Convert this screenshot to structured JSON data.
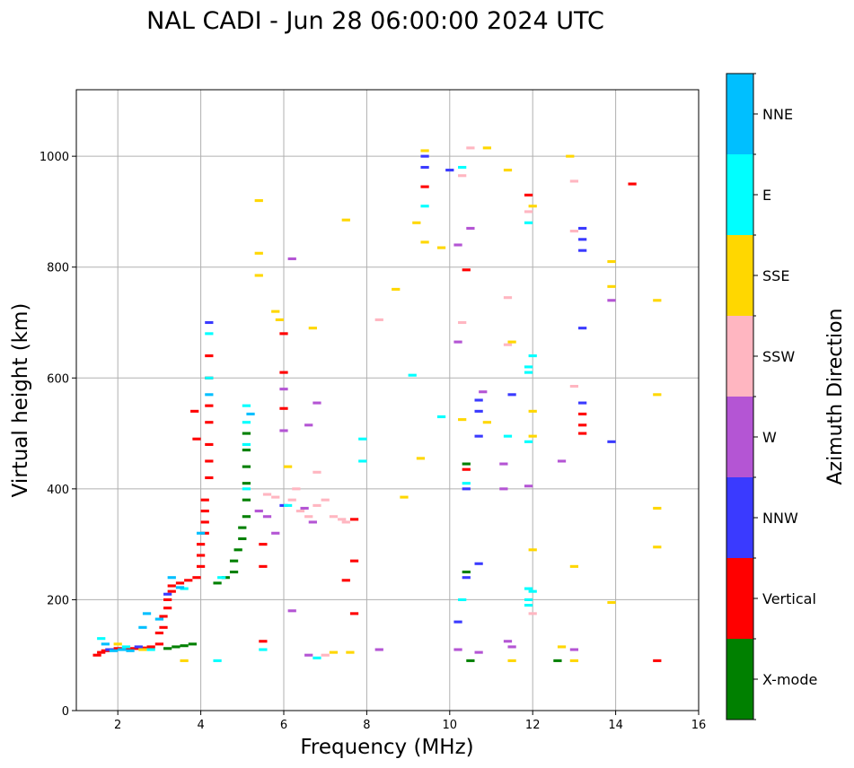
{
  "chart_data": {
    "type": "scatter",
    "title": "NAL CADI - Jun 28 06:00:00 2024 UTC",
    "xlabel": "Frequency (MHz)",
    "ylabel": "Virtual height (km)",
    "xlim": [
      1,
      16
    ],
    "ylim": [
      0,
      1120
    ],
    "xticks": [
      2,
      4,
      6,
      8,
      10,
      12,
      14,
      16
    ],
    "yticks": [
      0,
      200,
      400,
      600,
      800,
      1000
    ],
    "grid": true,
    "colorbar": {
      "title": "Azimuth Direction",
      "categories": [
        {
          "name": "X-mode",
          "color": "#008000"
        },
        {
          "name": "Vertical",
          "color": "#ff0000"
        },
        {
          "name": "NNW",
          "color": "#3a3aff"
        },
        {
          "name": "W",
          "color": "#b455d4"
        },
        {
          "name": "SSW",
          "color": "#ffb6c1"
        },
        {
          "name": "SSE",
          "color": "#ffd700"
        },
        {
          "name": "E",
          "color": "#00ffff"
        },
        {
          "name": "NNE",
          "color": "#00bfff"
        }
      ]
    },
    "series": [
      {
        "name": "Vertical",
        "points": [
          [
            1.5,
            100
          ],
          [
            1.6,
            105
          ],
          [
            1.7,
            108
          ],
          [
            1.8,
            110
          ],
          [
            2.0,
            112
          ],
          [
            2.2,
            112
          ],
          [
            2.4,
            112
          ],
          [
            2.6,
            113
          ],
          [
            2.8,
            115
          ],
          [
            3.0,
            120
          ],
          [
            3.0,
            140
          ],
          [
            3.1,
            150
          ],
          [
            3.1,
            170
          ],
          [
            3.2,
            185
          ],
          [
            3.2,
            200
          ],
          [
            3.3,
            215
          ],
          [
            3.3,
            225
          ],
          [
            3.5,
            230
          ],
          [
            3.7,
            235
          ],
          [
            3.9,
            240
          ],
          [
            4.0,
            260
          ],
          [
            4.0,
            280
          ],
          [
            4.0,
            300
          ],
          [
            4.1,
            320
          ],
          [
            4.1,
            340
          ],
          [
            4.1,
            360
          ],
          [
            4.1,
            380
          ],
          [
            4.2,
            420
          ],
          [
            4.2,
            450
          ],
          [
            4.2,
            480
          ],
          [
            4.2,
            520
          ],
          [
            4.2,
            550
          ],
          [
            4.2,
            600
          ],
          [
            4.2,
            640
          ],
          [
            3.9,
            490
          ],
          [
            3.85,
            540
          ],
          [
            5.5,
            300
          ],
          [
            5.5,
            260
          ],
          [
            5.5,
            125
          ],
          [
            6.0,
            610
          ],
          [
            6.0,
            545
          ],
          [
            6.0,
            680
          ],
          [
            7.7,
            345
          ],
          [
            7.7,
            270
          ],
          [
            7.5,
            235
          ],
          [
            7.7,
            175
          ],
          [
            9.4,
            945
          ],
          [
            10.4,
            795
          ],
          [
            10.4,
            435
          ],
          [
            11.9,
            930
          ],
          [
            13.2,
            535
          ],
          [
            13.2,
            515
          ],
          [
            13.2,
            500
          ],
          [
            14.4,
            950
          ],
          [
            15.0,
            90
          ]
        ]
      },
      {
        "name": "X-mode",
        "points": [
          [
            3.2,
            112
          ],
          [
            3.4,
            115
          ],
          [
            3.6,
            117
          ],
          [
            3.8,
            120
          ],
          [
            4.4,
            230
          ],
          [
            4.6,
            240
          ],
          [
            4.8,
            250
          ],
          [
            4.8,
            270
          ],
          [
            4.9,
            290
          ],
          [
            5.0,
            310
          ],
          [
            5.0,
            330
          ],
          [
            5.1,
            350
          ],
          [
            5.1,
            380
          ],
          [
            5.1,
            410
          ],
          [
            5.1,
            440
          ],
          [
            5.1,
            470
          ],
          [
            5.1,
            500
          ],
          [
            10.5,
            90
          ],
          [
            10.4,
            250
          ],
          [
            12.6,
            90
          ],
          [
            10.4,
            445
          ]
        ]
      },
      {
        "name": "NNW",
        "points": [
          [
            1.8,
            110
          ],
          [
            2.5,
            115
          ],
          [
            3.2,
            210
          ],
          [
            4.2,
            700
          ],
          [
            6.0,
            370
          ],
          [
            9.4,
            980
          ],
          [
            9.4,
            1000
          ],
          [
            10.0,
            975
          ],
          [
            10.4,
            400
          ],
          [
            10.7,
            560
          ],
          [
            10.7,
            540
          ],
          [
            10.7,
            495
          ],
          [
            11.5,
            570
          ],
          [
            10.4,
            240
          ],
          [
            10.7,
            265
          ],
          [
            10.2,
            160
          ],
          [
            13.2,
            870
          ],
          [
            13.2,
            850
          ],
          [
            13.2,
            830
          ],
          [
            13.2,
            690
          ],
          [
            13.2,
            555
          ],
          [
            13.9,
            485
          ]
        ]
      },
      {
        "name": "W",
        "points": [
          [
            5.4,
            360
          ],
          [
            5.6,
            350
          ],
          [
            5.8,
            320
          ],
          [
            6.0,
            505
          ],
          [
            6.0,
            580
          ],
          [
            6.2,
            815
          ],
          [
            6.5,
            365
          ],
          [
            6.7,
            340
          ],
          [
            6.6,
            515
          ],
          [
            6.8,
            555
          ],
          [
            10.2,
            665
          ],
          [
            10.2,
            840
          ],
          [
            10.5,
            870
          ],
          [
            10.8,
            575
          ],
          [
            11.3,
            400
          ],
          [
            11.3,
            445
          ],
          [
            11.9,
            405
          ],
          [
            11.5,
            115
          ],
          [
            11.4,
            125
          ],
          [
            12.7,
            450
          ],
          [
            13.0,
            110
          ],
          [
            13.9,
            740
          ],
          [
            6.6,
            100
          ],
          [
            6.2,
            180
          ],
          [
            10.2,
            110
          ],
          [
            10.7,
            105
          ],
          [
            8.3,
            110
          ]
        ]
      },
      {
        "name": "SSW",
        "points": [
          [
            6.3,
            400
          ],
          [
            6.2,
            380
          ],
          [
            6.4,
            360
          ],
          [
            6.6,
            350
          ],
          [
            6.8,
            370
          ],
          [
            7.0,
            380
          ],
          [
            7.2,
            350
          ],
          [
            7.4,
            345
          ],
          [
            7.5,
            340
          ],
          [
            5.6,
            390
          ],
          [
            5.8,
            385
          ],
          [
            6.8,
            430
          ],
          [
            8.3,
            705
          ],
          [
            10.3,
            700
          ],
          [
            10.3,
            965
          ],
          [
            10.5,
            1015
          ],
          [
            11.4,
            660
          ],
          [
            11.4,
            745
          ],
          [
            11.9,
            900
          ],
          [
            12.0,
            175
          ],
          [
            13.0,
            865
          ],
          [
            13.0,
            955
          ],
          [
            13.0,
            585
          ],
          [
            7.0,
            100
          ]
        ]
      },
      {
        "name": "SSE",
        "points": [
          [
            2.0,
            120
          ],
          [
            2.6,
            110
          ],
          [
            5.4,
            920
          ],
          [
            5.4,
            825
          ],
          [
            5.4,
            785
          ],
          [
            5.8,
            720
          ],
          [
            5.9,
            705
          ],
          [
            6.7,
            690
          ],
          [
            7.5,
            885
          ],
          [
            8.7,
            760
          ],
          [
            8.9,
            385
          ],
          [
            9.2,
            880
          ],
          [
            9.3,
            455
          ],
          [
            9.4,
            845
          ],
          [
            9.4,
            1010
          ],
          [
            9.8,
            835
          ],
          [
            10.3,
            525
          ],
          [
            10.9,
            1015
          ],
          [
            10.9,
            520
          ],
          [
            11.4,
            975
          ],
          [
            11.5,
            665
          ],
          [
            12.0,
            540
          ],
          [
            12.0,
            495
          ],
          [
            12.0,
            290
          ],
          [
            12.0,
            910
          ],
          [
            12.9,
            1000
          ],
          [
            13.0,
            260
          ],
          [
            12.7,
            115
          ],
          [
            13.0,
            90
          ],
          [
            13.9,
            765
          ],
          [
            13.9,
            810
          ],
          [
            13.9,
            195
          ],
          [
            15.0,
            740
          ],
          [
            15.0,
            570
          ],
          [
            15.0,
            365
          ],
          [
            15.0,
            295
          ],
          [
            7.2,
            105
          ],
          [
            7.6,
            105
          ],
          [
            11.5,
            90
          ],
          [
            3.6,
            90
          ],
          [
            6.1,
            440
          ]
        ]
      },
      {
        "name": "E",
        "points": [
          [
            1.6,
            130
          ],
          [
            2.2,
            115
          ],
          [
            2.8,
            110
          ],
          [
            3.6,
            220
          ],
          [
            4.2,
            680
          ],
          [
            4.2,
            600
          ],
          [
            4.4,
            90
          ],
          [
            4.5,
            240
          ],
          [
            5.1,
            550
          ],
          [
            5.1,
            520
          ],
          [
            5.1,
            480
          ],
          [
            5.1,
            400
          ],
          [
            5.5,
            110
          ],
          [
            6.1,
            370
          ],
          [
            7.9,
            490
          ],
          [
            7.9,
            450
          ],
          [
            9.4,
            910
          ],
          [
            9.1,
            605
          ],
          [
            9.8,
            530
          ],
          [
            10.3,
            980
          ],
          [
            10.4,
            410
          ],
          [
            11.4,
            495
          ],
          [
            11.9,
            610
          ],
          [
            11.9,
            620
          ],
          [
            11.9,
            485
          ],
          [
            11.9,
            220
          ],
          [
            11.9,
            200
          ],
          [
            11.9,
            190
          ],
          [
            11.9,
            880
          ],
          [
            12.0,
            640
          ],
          [
            12.0,
            215
          ],
          [
            10.3,
            200
          ],
          [
            6.8,
            95
          ]
        ]
      },
      {
        "name": "NNE",
        "points": [
          [
            1.7,
            120
          ],
          [
            1.9,
            108
          ],
          [
            2.1,
            110
          ],
          [
            2.3,
            108
          ],
          [
            2.6,
            150
          ],
          [
            2.7,
            175
          ],
          [
            3.0,
            165
          ],
          [
            3.3,
            240
          ],
          [
            3.5,
            222
          ],
          [
            4.2,
            570
          ],
          [
            5.2,
            535
          ],
          [
            4.0,
            320
          ]
        ]
      }
    ]
  }
}
